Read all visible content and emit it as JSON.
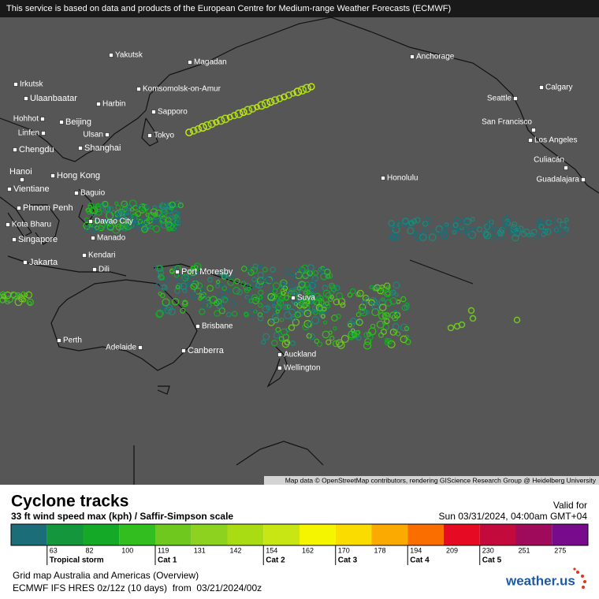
{
  "notice": "This service is based on data and products of the European Centre for Medium-range Weather Forecasts (ECMWF)",
  "cities": [
    "Yakutsk",
    "Magadan",
    "Anchorage",
    "Irkutsk",
    "Ulaanbaatar",
    "Komsomolsk-on-Amur",
    "Harbin",
    "Calgary",
    "Seattle",
    "Sapporo",
    "Hohhot",
    "Beijing",
    "San Francisco",
    "Linfen",
    "Ulsan",
    "Tokyo",
    "Los Angeles",
    "Chengdu",
    "Shanghai",
    "Culiacán",
    "Hanoi",
    "Hong Kong",
    "Honolulu",
    "Guadalajara",
    "Vientiane",
    "Baguio",
    "Phnom Penh",
    "Davao City",
    "Kota Bharu",
    "Singapore",
    "Manado",
    "Kendari",
    "Jakarta",
    "Dili",
    "Port Moresby",
    "Suva",
    "Perth",
    "Brisbane",
    "Adelaide",
    "Canberra",
    "Auckland",
    "Wellington"
  ],
  "attribution": "Map data © OpenStreetMap contributors, rendering GIScience Research Group @ Heidelberg University",
  "legend": {
    "title": "Cyclone tracks",
    "subtitle": "33 ft wind speed max (kph) / Saffir-Simpson scale",
    "valid_label": "Valid for",
    "valid_time": "Sun 03/31/2024, 04:00am GMT+04",
    "scale": [
      63,
      82,
      100,
      119,
      131,
      142,
      154,
      162,
      170,
      178,
      194,
      209,
      230,
      251,
      275
    ],
    "colors": [
      "#1b6e78",
      "#14963c",
      "#14aa28",
      "#32be1e",
      "#6ec81e",
      "#8cd21e",
      "#aadc14",
      "#c8e614",
      "#f5f500",
      "#fadc00",
      "#faaa00",
      "#fa6e00",
      "#e60a23",
      "#c30a3c",
      "#a00a5a",
      "#780a8c"
    ],
    "categories": [
      "Tropical storm",
      "Cat 1",
      "Cat 2",
      "Cat 3",
      "Cat 4",
      "Cat 5"
    ]
  },
  "footer": {
    "map_name": "Grid map Australia and Americas (Overview)",
    "model": "ECMWF IFS HRES 0z/12z (10 days)  from  03/21/2024/00z"
  },
  "logo": "weather.us"
}
